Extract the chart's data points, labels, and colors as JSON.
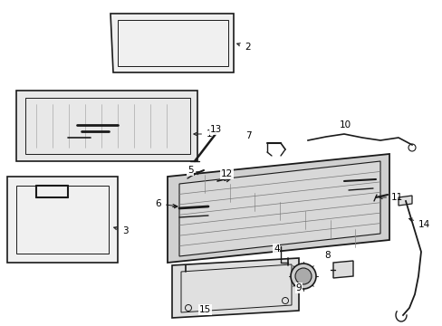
{
  "background_color": "#ffffff",
  "line_color": "#1a1a1a",
  "label_color": "#000000",
  "figsize": [
    4.89,
    3.6
  ],
  "dpi": 100,
  "hatch_color": "#aaaaaa"
}
